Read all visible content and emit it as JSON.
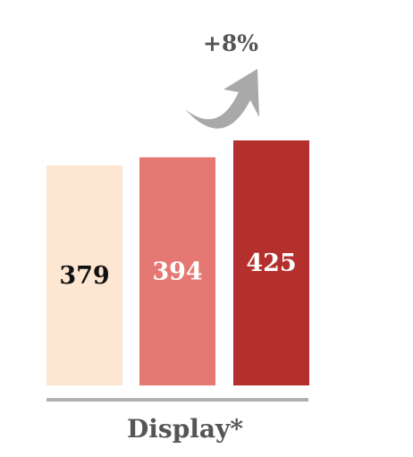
{
  "chart_data": {
    "type": "bar",
    "categories": [
      "",
      "",
      ""
    ],
    "values": [
      379,
      394,
      425
    ],
    "bar_colors": [
      "#fde6d2",
      "#e57873",
      "#b3302c"
    ],
    "label_colors": [
      "#111111",
      "#ffffff",
      "#ffffff"
    ],
    "group_label": "Display*",
    "growth_label": "+8%",
    "arrow_color": "#a9a9a9",
    "axis_color": "#b0b0b0",
    "text_color": "#555555",
    "ylim": [
      0,
      425
    ]
  }
}
